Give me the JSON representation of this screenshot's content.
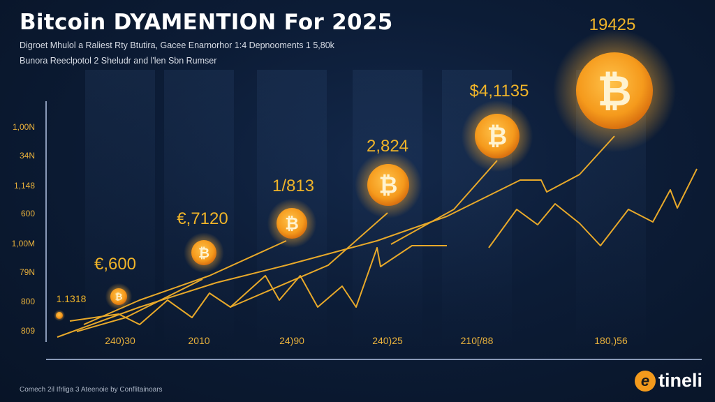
{
  "title": "Bitcoin DYAMENTION For 2025",
  "subtitle_lines": [
    "Digroet Mhulol a Raliest Rty Btutira, Gacee Enarnorhor 1:4 Depnooments 1 5,80k",
    "Bunora Reeclpotol 2 Sheludr and l'len Sbn Rumser"
  ],
  "footer": "Comech 2il Ifrliga 3 Ateenoie by Conflitainoars",
  "logo": {
    "text": "tineli",
    "mark": "e"
  },
  "colors": {
    "line": "#e8a92a",
    "coin": "#f59a1c",
    "label": "#f0b429",
    "background": "#0c1c36"
  },
  "chart_data": {
    "type": "line",
    "title": "Bitcoin DYAMENTION For 2025",
    "y_tick_labels": [
      "1,00N",
      "34N",
      "1,148",
      "600",
      "1,00M",
      "79N",
      "800",
      "809"
    ],
    "x_tick_labels": [
      "240)30",
      "2010",
      "24)90",
      "240)25",
      "210[/88",
      "180,)56"
    ],
    "coin_annotations": [
      {
        "label": "1.1318",
        "icon": "bitcoin-coin"
      },
      {
        "label": "€,600",
        "icon": "bitcoin-coin"
      },
      {
        "label": "€,7120",
        "icon": "bitcoin-coin"
      },
      {
        "label": "1/813",
        "icon": "bitcoin-coin"
      },
      {
        "label": "2,824",
        "icon": "bitcoin-coin"
      },
      {
        "label": "$4,1135",
        "icon": "bitcoin-coin"
      },
      {
        "label": "19425",
        "icon": "bitcoin-coin"
      }
    ],
    "grid": false,
    "legend": "none"
  }
}
